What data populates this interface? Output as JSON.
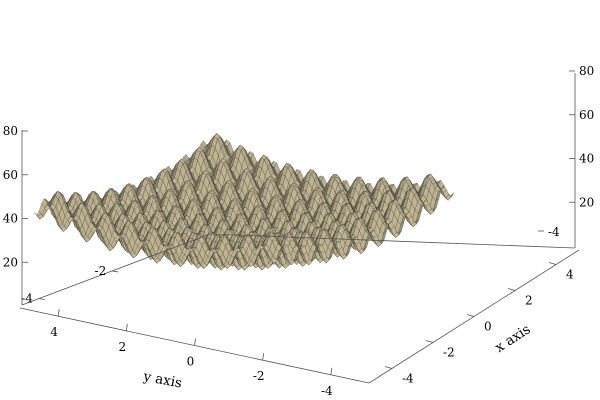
{
  "chart_data": {
    "type": "surface",
    "title": "",
    "function": "z = x^2 + y^2 + 10*(2 - cos(2*pi*x) - cos(2*pi*y))",
    "xlabel": "x axis",
    "ylabel": "y axis",
    "zlabel": "",
    "xlim": [
      -5.12,
      5.12
    ],
    "ylim": [
      -5.12,
      5.12
    ],
    "zlim": [
      0,
      80
    ],
    "x_ticks": [
      "-4",
      "-2",
      "0",
      "2",
      "4"
    ],
    "y_ticks": [
      "-4",
      "-2",
      "0",
      "2",
      "4"
    ],
    "z_ticks": [
      "20",
      "40",
      "60",
      "80"
    ],
    "x_tick_values": [
      -4,
      -2,
      0,
      2,
      4
    ],
    "y_tick_values": [
      -4,
      -2,
      0,
      2,
      4
    ],
    "z_tick_values": [
      20,
      40,
      60,
      80
    ],
    "surface_color": "#d4c7a3",
    "mesh_color": "#2e2e26",
    "grid": false
  }
}
